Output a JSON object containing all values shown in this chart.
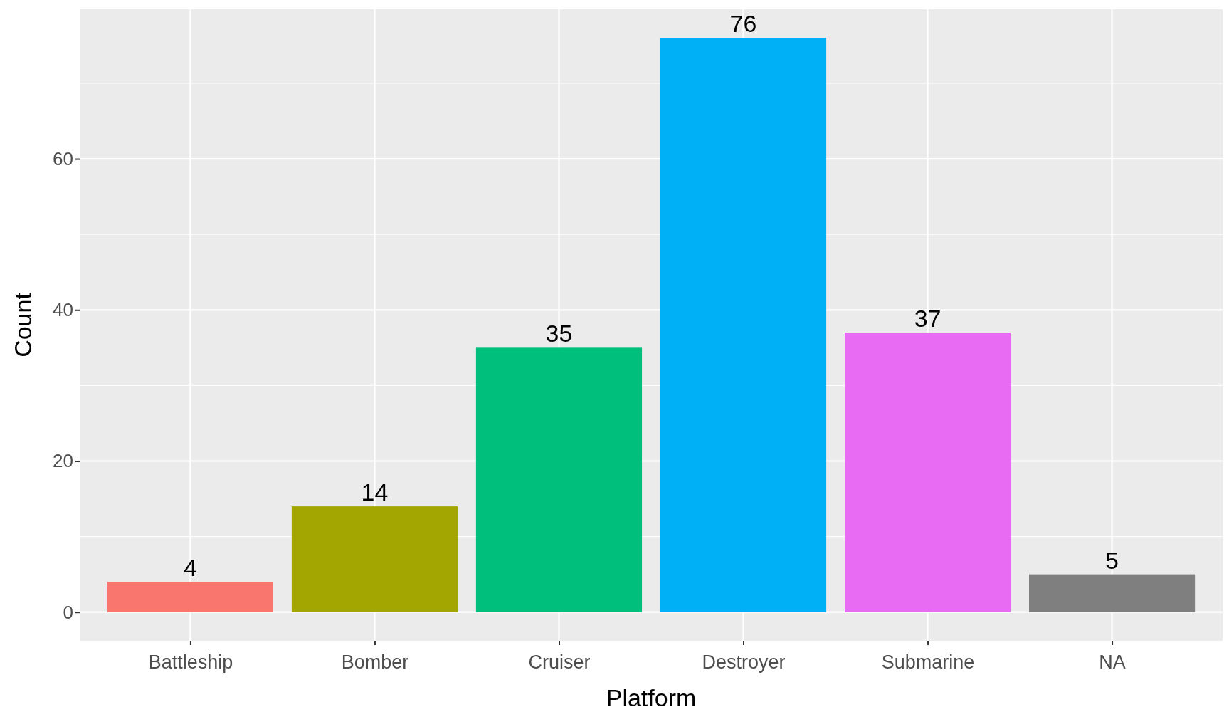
{
  "chart_data": {
    "type": "bar",
    "xlabel": "Platform",
    "ylabel": "Count",
    "categories": [
      "Battleship",
      "Bomber",
      "Cruiser",
      "Destroyer",
      "Submarine",
      "NA"
    ],
    "values": [
      4,
      14,
      35,
      76,
      37,
      5
    ],
    "colors": [
      "#f8766d",
      "#a3a500",
      "#00bf7d",
      "#00b0f6",
      "#e76bf3",
      "#7f7f7f"
    ],
    "ylim": [
      -3.8,
      79.8
    ],
    "yticks": [
      0,
      20,
      40,
      60
    ],
    "grid": true,
    "data_labels": true
  }
}
